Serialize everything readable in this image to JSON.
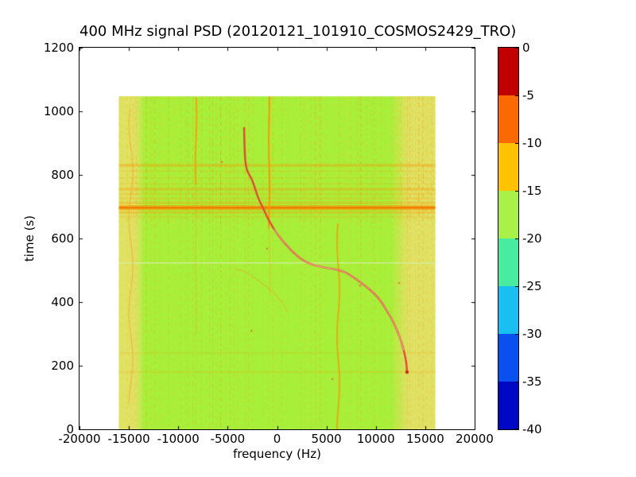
{
  "figure": {
    "title": "400 MHz signal PSD (20120121_101910_COSMOS2429_TRO)",
    "xlabel": "frequency (Hz)",
    "ylabel": "time (s)"
  },
  "chart_data": {
    "type": "heatmap",
    "title": "400 MHz signal PSD (20120121_101910_COSMOS2429_TRO)",
    "xlabel": "frequency (Hz)",
    "ylabel": "time (s)",
    "xlim": [
      -20000,
      20000
    ],
    "ylim": [
      0,
      1200
    ],
    "grid": false,
    "x_ticks": [
      -20000,
      -15000,
      -10000,
      -5000,
      0,
      5000,
      10000,
      15000,
      20000
    ],
    "x_tick_labels": [
      "-20000",
      "-15000",
      "-10000",
      "-5000",
      "0",
      "5000",
      "10000",
      "15000",
      "20000"
    ],
    "y_ticks": [
      0,
      200,
      400,
      600,
      800,
      1000,
      1200
    ],
    "y_tick_labels": [
      "0",
      "200",
      "400",
      "600",
      "800",
      "1000",
      "1200"
    ],
    "data_extent": {
      "f_hz": [
        -16000,
        16000
      ],
      "t_s": [
        0,
        1047
      ]
    },
    "colorbar": {
      "levels_db": [
        0,
        -5,
        -10,
        -15,
        -20,
        -25,
        -30,
        -35,
        -40
      ],
      "tick_labels": [
        "0",
        "-5",
        "-10",
        "-15",
        "-20",
        "-25",
        "-30",
        "-35",
        "-40"
      ],
      "band_colors_top_to_bottom": [
        "#c00000",
        "#fb6a02",
        "#ffc303",
        "#a9f048",
        "#48eca0",
        "#19bff0",
        "#0a50ef",
        "#0108c4"
      ]
    },
    "background_psd_level_db": -17,
    "field_colors": {
      "base_green": "#a6f13c",
      "stripe_yellow": "#d9d828",
      "stripe_orange": "#f3a016",
      "margin_yellow": "#e6e16b",
      "band_orange": "#fa9605",
      "band_core_orange": "#f07800",
      "light_line": "#d2f2a2",
      "track_red": "#e04634",
      "track_core_pink": "#ffc2b4",
      "track_end_red": "#c62814",
      "ghost_orange": "#f4a028",
      "speck_red": "#e85050"
    },
    "doppler_track": {
      "description": "satellite Doppler S-curve, points as [frequency_hz, time_s]",
      "points": [
        [
          -3340,
          950
        ],
        [
          -3280,
          860
        ],
        [
          -3100,
          815
        ],
        [
          -2540,
          787
        ],
        [
          -2200,
          755
        ],
        [
          -1890,
          725
        ],
        [
          -1400,
          695
        ],
        [
          -925,
          662
        ],
        [
          -300,
          628
        ],
        [
          360,
          600
        ],
        [
          1400,
          562
        ],
        [
          2535,
          532
        ],
        [
          3500,
          518
        ],
        [
          5000,
          507
        ],
        [
          6560,
          500
        ],
        [
          7800,
          477
        ],
        [
          8975,
          450
        ],
        [
          9850,
          427
        ],
        [
          10585,
          400
        ],
        [
          11250,
          366
        ],
        [
          11790,
          337
        ],
        [
          12250,
          303
        ],
        [
          12595,
          275
        ],
        [
          12830,
          248
        ],
        [
          13000,
          225
        ],
        [
          13110,
          203
        ],
        [
          13160,
          180
        ]
      ],
      "core_t_range": [
        240,
        650
      ],
      "end_point": [
        13160,
        180
      ]
    },
    "ghost_track": {
      "offset_hz": -10100,
      "t_range": [
        368,
        506
      ],
      "strength": 0.5
    },
    "interference": {
      "vertical_lines": [
        {
          "f_hz": -8200,
          "t_range": [
            770,
            1047
          ],
          "strength": 0.85,
          "width": 1.8,
          "wiggle": 0.8
        },
        {
          "f_hz": -8200,
          "t_range": [
            300,
            770
          ],
          "strength": 0.28,
          "width": 1.2,
          "wiggle": 0.8
        },
        {
          "f_hz": -800,
          "t_range": [
            630,
            1047
          ],
          "strength": 0.95,
          "width": 2.0,
          "wiggle": 0.5
        },
        {
          "f_hz": -750,
          "t_range": [
            420,
            630
          ],
          "strength": 0.33,
          "width": 1.2,
          "wiggle": 0.5
        },
        {
          "f_hz": 6200,
          "t_range": [
            0,
            648
          ],
          "strength": 0.8,
          "width": 1.8,
          "wiggle": 1.6
        },
        {
          "f_hz": -14800,
          "t_range": [
            80,
            1010
          ],
          "strength": 0.45,
          "width": 1.3,
          "wiggle": 2.5
        }
      ],
      "horizontal_bands": [
        {
          "t_s": 830,
          "half_width_s": 5,
          "strength": 0.5
        },
        {
          "t_s": 812,
          "half_width_s": 3,
          "strength": 0.22
        },
        {
          "t_s": 790,
          "half_width_s": 3,
          "strength": 0.18
        },
        {
          "t_s": 772,
          "half_width_s": 3,
          "strength": 0.22
        },
        {
          "t_s": 755,
          "half_width_s": 6,
          "strength": 0.42
        },
        {
          "t_s": 740,
          "half_width_s": 4,
          "strength": 0.28
        },
        {
          "t_s": 726,
          "half_width_s": 4,
          "strength": 0.3
        },
        {
          "t_s": 712,
          "half_width_s": 5,
          "strength": 0.38
        },
        {
          "t_s": 697,
          "half_width_s": 9,
          "strength": 0.95
        },
        {
          "t_s": 682,
          "half_width_s": 5,
          "strength": 0.4
        },
        {
          "t_s": 668,
          "half_width_s": 4,
          "strength": 0.22
        },
        {
          "t_s": 240,
          "half_width_s": 4,
          "strength": 0.16
        },
        {
          "t_s": 180,
          "half_width_s": 4,
          "strength": 0.22
        }
      ],
      "light_line_t_s": 525,
      "noisy_texture_t_range": [
        660,
        845
      ],
      "specks": [
        [
          -1000,
          568
        ],
        [
          8400,
          452
        ],
        [
          12350,
          460
        ],
        [
          -2600,
          310
        ],
        [
          5600,
          158
        ],
        [
          -5600,
          840
        ]
      ]
    }
  }
}
